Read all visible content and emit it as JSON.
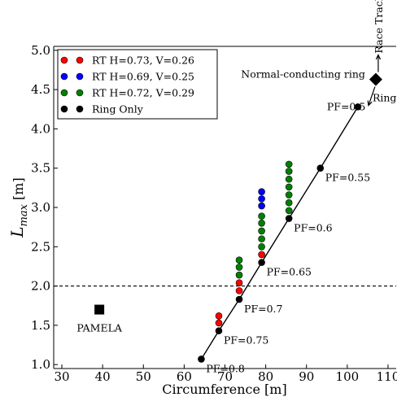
{
  "chart_data": {
    "type": "scatter",
    "xlabel": "Circumference [m]",
    "ylabel_main": "L",
    "ylabel_sub": "max",
    "ylabel_unit": " [m]",
    "xlim": [
      28,
      112
    ],
    "ylim": [
      0.95,
      5.05
    ],
    "xticks": [
      30,
      40,
      50,
      60,
      70,
      80,
      90,
      100,
      110
    ],
    "yticks": [
      1.0,
      1.5,
      2.0,
      2.5,
      3.0,
      3.5,
      4.0,
      4.5,
      5.0
    ],
    "xtick_labels": [
      "30",
      "40",
      "50",
      "60",
      "70",
      "80",
      "90",
      "100",
      "110"
    ],
    "ytick_labels": [
      "1.0",
      "1.5",
      "2.0",
      "2.5",
      "3.0",
      "3.5",
      "4.0",
      "4.5",
      "5.0"
    ],
    "legend_position": "top-left",
    "dashed_line_y": 2.0,
    "colors": {
      "red": "#ff0000",
      "blue": "#0000ff",
      "green": "#008000",
      "black": "#000000"
    },
    "series": [
      {
        "name": "RT H=0.73, V=0.26",
        "color": "#ff0000",
        "points": [
          {
            "x": 68.5,
            "y": 1.53
          },
          {
            "x": 68.5,
            "y": 1.62
          },
          {
            "x": 73.5,
            "y": 1.94
          },
          {
            "x": 73.5,
            "y": 2.04
          },
          {
            "x": 79.0,
            "y": 2.4
          }
        ]
      },
      {
        "name": "RT H=0.69, V=0.25",
        "color": "#0000ff",
        "points": [
          {
            "x": 79.0,
            "y": 3.02
          },
          {
            "x": 79.0,
            "y": 3.11
          },
          {
            "x": 79.0,
            "y": 3.2
          }
        ]
      },
      {
        "name": "RT H=0.72, V=0.29",
        "color": "#008000",
        "points": [
          {
            "x": 73.5,
            "y": 2.14
          },
          {
            "x": 73.5,
            "y": 2.24
          },
          {
            "x": 73.5,
            "y": 2.33
          },
          {
            "x": 79.0,
            "y": 2.5
          },
          {
            "x": 79.0,
            "y": 2.6
          },
          {
            "x": 79.0,
            "y": 2.7
          },
          {
            "x": 79.0,
            "y": 2.8
          },
          {
            "x": 79.0,
            "y": 2.89
          },
          {
            "x": 85.7,
            "y": 2.96
          },
          {
            "x": 85.7,
            "y": 3.06
          },
          {
            "x": 85.7,
            "y": 3.16
          },
          {
            "x": 85.7,
            "y": 3.26
          },
          {
            "x": 85.7,
            "y": 3.36
          },
          {
            "x": 85.7,
            "y": 3.46
          },
          {
            "x": 85.7,
            "y": 3.55
          }
        ]
      },
      {
        "name": "Ring Only",
        "color": "#000000",
        "connected": true,
        "points": [
          {
            "x": 64.2,
            "y": 1.07
          },
          {
            "x": 68.5,
            "y": 1.43
          },
          {
            "x": 73.5,
            "y": 1.83
          },
          {
            "x": 79.0,
            "y": 2.3
          },
          {
            "x": 85.7,
            "y": 2.86
          },
          {
            "x": 93.4,
            "y": 3.5
          },
          {
            "x": 102.6,
            "y": 4.28
          }
        ]
      }
    ],
    "pf_labels": [
      {
        "text": "PF=0.8",
        "x": 64.2,
        "y": 1.07
      },
      {
        "text": "PF=0.75",
        "x": 68.5,
        "y": 1.43
      },
      {
        "text": "PF=0.7",
        "x": 73.5,
        "y": 1.83
      },
      {
        "text": "PF=0.65",
        "x": 79.0,
        "y": 2.3
      },
      {
        "text": "PF=0.6",
        "x": 85.7,
        "y": 2.86
      },
      {
        "text": "PF=0.55",
        "x": 93.4,
        "y": 3.5
      },
      {
        "text": "PF=0.5",
        "x": 102.6,
        "y": 4.28
      }
    ],
    "pamela": {
      "label": "PAMELA",
      "x": 39.2,
      "y": 1.7
    },
    "normal_ring": {
      "label": "Normal-conducting ring",
      "x": 107.0,
      "y": 4.63
    },
    "race_track_label": "Race Track",
    "ring_label": "Ring"
  }
}
